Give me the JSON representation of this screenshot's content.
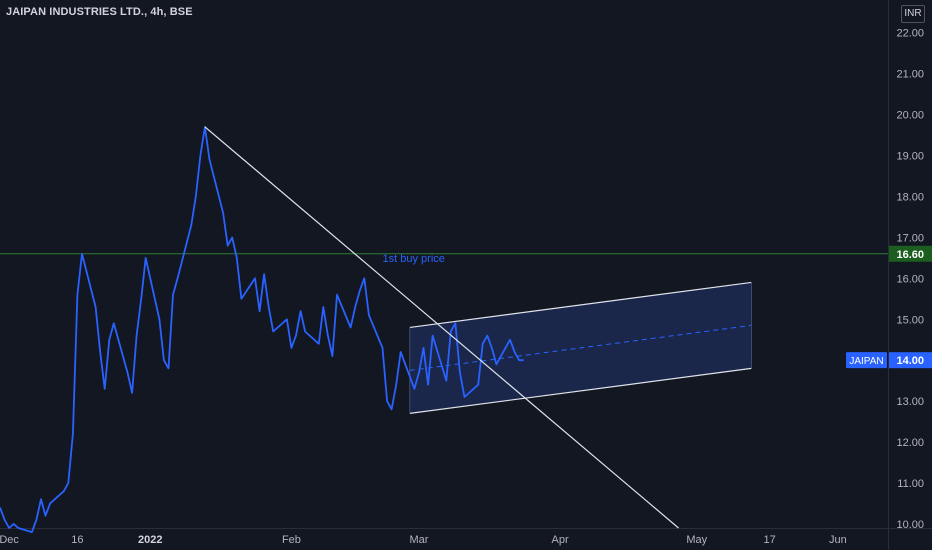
{
  "header": {
    "symbol_title": "JAIPAN INDUSTRIES LTD., 4h, BSE",
    "currency": "INR"
  },
  "colors": {
    "background": "#131722",
    "price_line": "#2962ff",
    "trend_line": "#e0e3eb",
    "channel_fill": "#1e2d5a",
    "horizontal_line": "#2e7d32",
    "level_badge": "#1b5e20",
    "last_price_badge": "#2962ff"
  },
  "chart_data": {
    "type": "line",
    "title": "JAIPAN INDUSTRIES LTD., 4h, BSE",
    "series": [
      {
        "name": "JAIPAN",
        "x": [
          "2021-11-29",
          "2021-11-30",
          "2021-12-01",
          "2021-12-02",
          "2021-12-03",
          "2021-12-06",
          "2021-12-07",
          "2021-12-08",
          "2021-12-09",
          "2021-12-10",
          "2021-12-13",
          "2021-12-14",
          "2021-12-15",
          "2021-12-16",
          "2021-12-17",
          "2021-12-20",
          "2021-12-21",
          "2021-12-22",
          "2021-12-23",
          "2021-12-24",
          "2021-12-27",
          "2021-12-28",
          "2021-12-29",
          "2021-12-30",
          "2021-12-31",
          "2022-01-03",
          "2022-01-04",
          "2022-01-05",
          "2022-01-06",
          "2022-01-07",
          "2022-01-10",
          "2022-01-11",
          "2022-01-12",
          "2022-01-13",
          "2022-01-14",
          "2022-01-17",
          "2022-01-18",
          "2022-01-19",
          "2022-01-20",
          "2022-01-21",
          "2022-01-24",
          "2022-01-25",
          "2022-01-26",
          "2022-01-27",
          "2022-01-28",
          "2022-01-31",
          "2022-02-01",
          "2022-02-02",
          "2022-02-03",
          "2022-02-04",
          "2022-02-07",
          "2022-02-08",
          "2022-02-09",
          "2022-02-10",
          "2022-02-11",
          "2022-02-14",
          "2022-02-15",
          "2022-02-16",
          "2022-02-17",
          "2022-02-18",
          "2022-02-21",
          "2022-02-22",
          "2022-02-23",
          "2022-02-24",
          "2022-02-25",
          "2022-02-28",
          "2022-03-01",
          "2022-03-02",
          "2022-03-03",
          "2022-03-04",
          "2022-03-07",
          "2022-03-08",
          "2022-03-09",
          "2022-03-10",
          "2022-03-11",
          "2022-03-14",
          "2022-03-15",
          "2022-03-16",
          "2022-03-17",
          "2022-03-18",
          "2022-03-21",
          "2022-03-22",
          "2022-03-23",
          "2022-03-24"
        ],
        "y": [
          10.4,
          10.1,
          9.9,
          10.0,
          9.9,
          9.8,
          10.1,
          10.6,
          10.2,
          10.5,
          10.8,
          11.0,
          12.2,
          15.6,
          16.6,
          15.3,
          14.2,
          13.3,
          14.5,
          14.9,
          13.7,
          13.2,
          14.6,
          15.5,
          16.5,
          15.0,
          14.0,
          13.8,
          15.6,
          16.0,
          17.3,
          18.0,
          19.0,
          19.7,
          18.9,
          17.6,
          16.8,
          17.0,
          16.5,
          15.5,
          16.0,
          15.2,
          16.1,
          15.3,
          14.7,
          15.0,
          14.3,
          14.6,
          15.2,
          14.7,
          14.4,
          15.3,
          14.6,
          14.1,
          15.6,
          14.8,
          15.3,
          15.7,
          16.0,
          15.1,
          14.3,
          13.0,
          12.8,
          13.4,
          14.2,
          13.3,
          13.7,
          14.3,
          13.4,
          14.6,
          13.5,
          14.7,
          14.9,
          13.7,
          13.1,
          13.4,
          14.4,
          14.6,
          14.3,
          13.9,
          14.5,
          14.2,
          14.0,
          14.0
        ]
      }
    ],
    "yaxis_ticks": [
      "22.00",
      "21.00",
      "20.00",
      "19.00",
      "18.00",
      "17.00",
      "16.00",
      "15.00",
      "14.00",
      "13.00",
      "12.00",
      "11.00",
      "10.00"
    ],
    "ylim": [
      9.9,
      22.8
    ],
    "xaxis_ticks": [
      "Dec",
      "16",
      "2022",
      "Feb",
      "Mar",
      "Apr",
      "May",
      "17",
      "Jun"
    ],
    "xlim": [
      "2021-11-29",
      "2022-06-12"
    ],
    "annotations": [
      {
        "type": "trend_line",
        "from": {
          "x": "2022-01-13",
          "y": 19.7
        },
        "to": {
          "x": "2022-04-27",
          "y": 9.9
        }
      },
      {
        "type": "horizontal_line",
        "y": 16.6
      },
      {
        "type": "text",
        "text": "1st buy price",
        "x": "2022-02-21",
        "y": 16.4
      },
      {
        "type": "parallel_channel",
        "upper": {
          "from": {
            "x": "2022-02-27",
            "y": 14.8
          },
          "to": {
            "x": "2022-05-13",
            "y": 15.9
          }
        },
        "lower": {
          "from": {
            "x": "2022-02-27",
            "y": 12.7
          },
          "to": {
            "x": "2022-05-13",
            "y": 13.8
          }
        },
        "median": {
          "from": {
            "x": "2022-02-27",
            "y": 13.75
          },
          "to": {
            "x": "2022-05-13",
            "y": 14.85
          }
        }
      }
    ],
    "price_labels": [
      {
        "text": "16.60",
        "kind": "level"
      },
      {
        "text": "14.00",
        "kind": "last",
        "symbol": "JAIPAN"
      }
    ],
    "grid": false,
    "legend": "none"
  }
}
